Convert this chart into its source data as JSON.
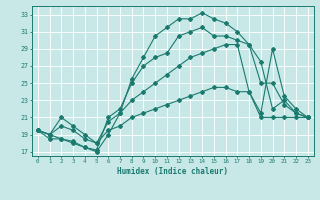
{
  "title": "",
  "xlabel": "Humidex (Indice chaleur)",
  "ylabel": "",
  "bg_color": "#c8e8e8",
  "grid_color": "#ffffff",
  "line_color": "#1a7a6e",
  "xlim": [
    -0.5,
    23.5
  ],
  "ylim": [
    16.5,
    34.0
  ],
  "xticks": [
    0,
    1,
    2,
    3,
    4,
    5,
    6,
    7,
    8,
    9,
    10,
    11,
    12,
    13,
    14,
    15,
    16,
    17,
    18,
    19,
    20,
    21,
    22,
    23
  ],
  "yticks": [
    17,
    19,
    21,
    23,
    25,
    27,
    29,
    31,
    33
  ],
  "series": [
    [
      19.5,
      19.0,
      18.5,
      18.2,
      17.5,
      17.0,
      19.0,
      21.5,
      25.5,
      28.0,
      30.5,
      31.5,
      32.5,
      32.5,
      33.2,
      32.5,
      32.0,
      31.0,
      29.5,
      27.5,
      22.0,
      23.0,
      21.5,
      21.0
    ],
    [
      19.5,
      18.5,
      18.5,
      18.0,
      17.5,
      17.2,
      21.0,
      22.0,
      25.0,
      27.0,
      28.0,
      28.5,
      30.5,
      31.0,
      31.5,
      30.5,
      30.5,
      30.0,
      29.5,
      25.0,
      25.0,
      22.5,
      21.5,
      21.0
    ],
    [
      19.5,
      19.0,
      21.0,
      20.0,
      19.0,
      18.0,
      20.5,
      21.5,
      23.0,
      24.0,
      25.0,
      26.0,
      27.0,
      28.0,
      28.5,
      29.0,
      29.5,
      29.5,
      24.0,
      21.5,
      29.0,
      23.5,
      22.0,
      21.0
    ],
    [
      19.5,
      19.0,
      20.0,
      19.5,
      18.5,
      18.0,
      19.5,
      20.0,
      21.0,
      21.5,
      22.0,
      22.5,
      23.0,
      23.5,
      24.0,
      24.5,
      24.5,
      24.0,
      24.0,
      21.0,
      21.0,
      21.0,
      21.0,
      21.0
    ]
  ]
}
